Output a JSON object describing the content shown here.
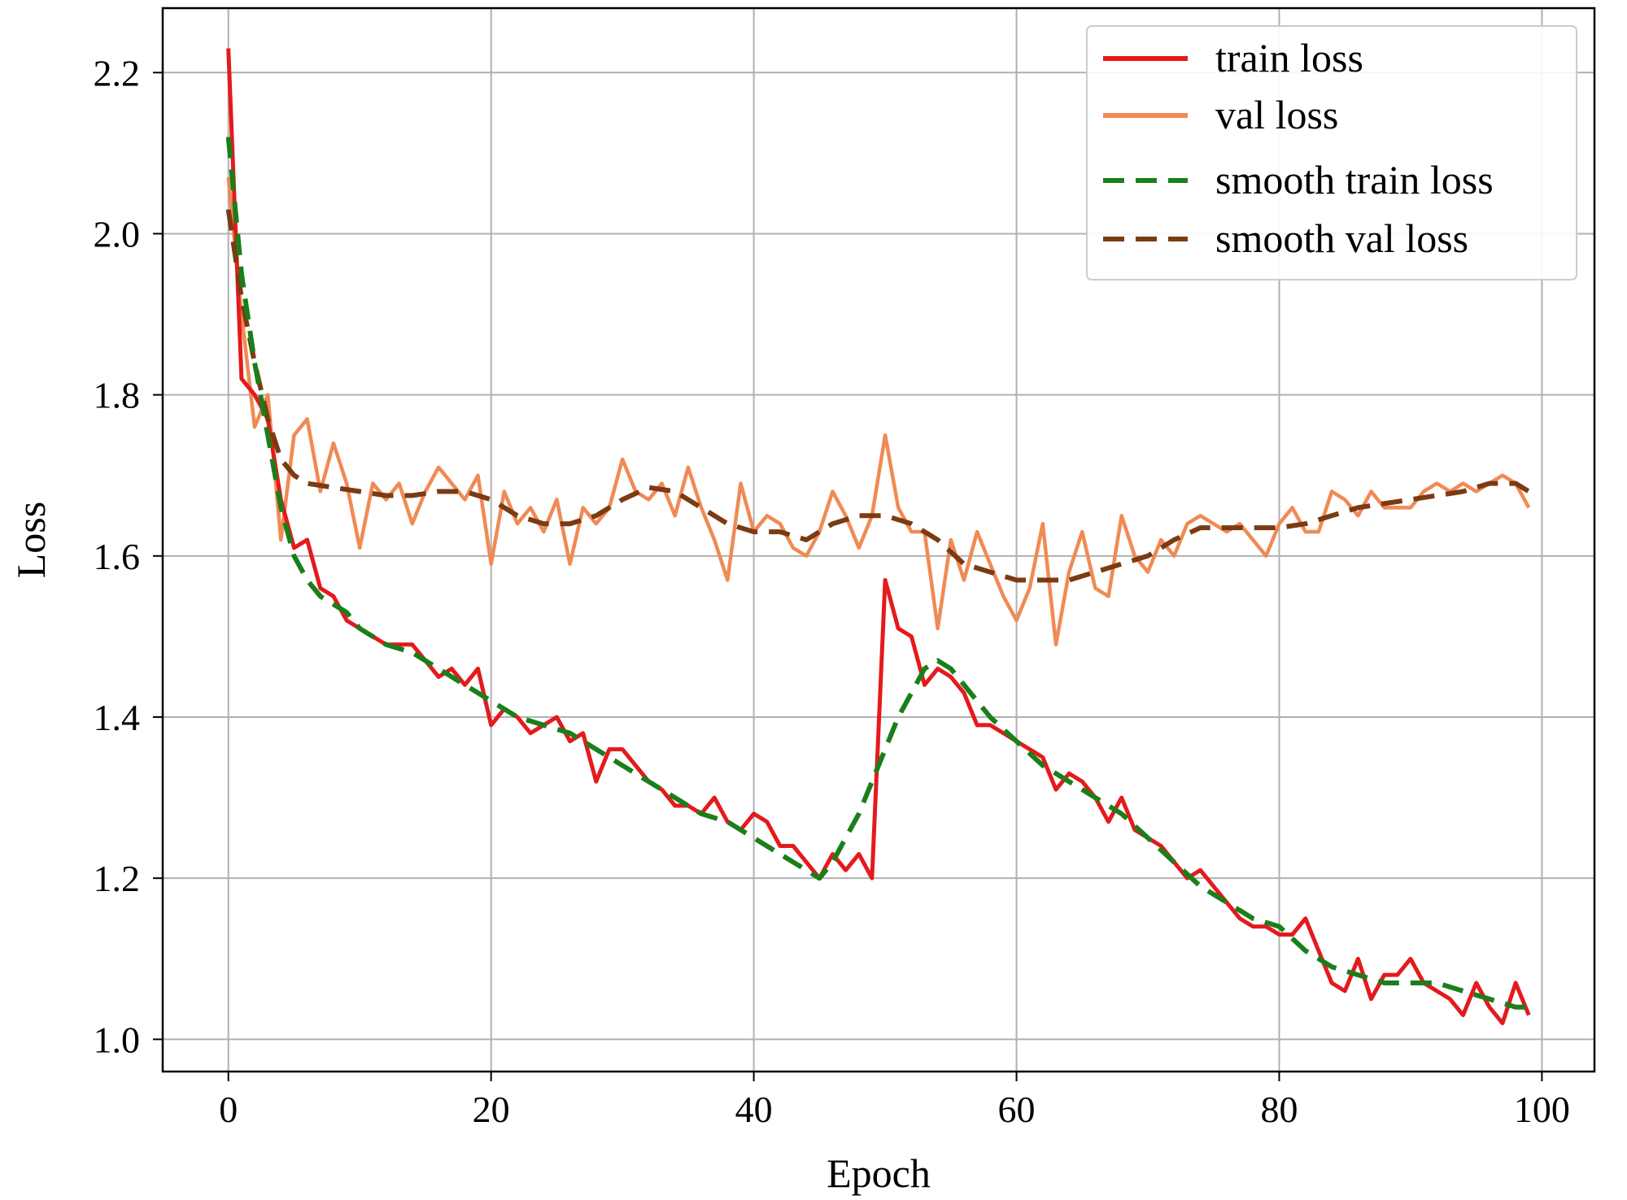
{
  "chart_data": {
    "type": "line",
    "title": "",
    "xlabel": "Epoch",
    "ylabel": "Loss",
    "xlim": [
      -5,
      104
    ],
    "ylim": [
      0.96,
      2.28
    ],
    "xticks": [
      0,
      20,
      40,
      60,
      80,
      100
    ],
    "xtick_labels": [
      "0",
      "20",
      "40",
      "60",
      "80",
      "100"
    ],
    "yticks": [
      1.0,
      1.2,
      1.4,
      1.6,
      1.8,
      2.0,
      2.2
    ],
    "ytick_labels": [
      "1.0",
      "1.2",
      "1.4",
      "1.6",
      "1.8",
      "2.0",
      "2.2"
    ],
    "grid": true,
    "legend_position": "top-right",
    "series": [
      {
        "name": "train loss",
        "color": "#e41a1c",
        "style": "solid",
        "x": [
          0,
          1,
          2,
          3,
          4,
          5,
          6,
          7,
          8,
          9,
          10,
          11,
          12,
          13,
          14,
          15,
          16,
          17,
          18,
          19,
          20,
          21,
          22,
          23,
          24,
          25,
          26,
          27,
          28,
          29,
          30,
          31,
          32,
          33,
          34,
          35,
          36,
          37,
          38,
          39,
          40,
          41,
          42,
          43,
          44,
          45,
          46,
          47,
          48,
          49,
          50,
          51,
          52,
          53,
          54,
          55,
          56,
          57,
          58,
          59,
          60,
          61,
          62,
          63,
          64,
          65,
          66,
          67,
          68,
          69,
          70,
          71,
          72,
          73,
          74,
          75,
          76,
          77,
          78,
          79,
          80,
          81,
          82,
          83,
          84,
          85,
          86,
          87,
          88,
          89,
          90,
          91,
          92,
          93,
          94,
          95,
          96,
          97,
          98,
          99
        ],
        "values": [
          2.23,
          1.82,
          1.8,
          1.77,
          1.67,
          1.61,
          1.62,
          1.56,
          1.55,
          1.52,
          1.51,
          1.5,
          1.49,
          1.49,
          1.49,
          1.47,
          1.45,
          1.46,
          1.44,
          1.46,
          1.39,
          1.41,
          1.4,
          1.38,
          1.39,
          1.4,
          1.37,
          1.38,
          1.32,
          1.36,
          1.36,
          1.34,
          1.32,
          1.31,
          1.29,
          1.29,
          1.28,
          1.3,
          1.27,
          1.26,
          1.28,
          1.27,
          1.24,
          1.24,
          1.22,
          1.2,
          1.23,
          1.21,
          1.23,
          1.2,
          1.57,
          1.51,
          1.5,
          1.44,
          1.46,
          1.45,
          1.43,
          1.39,
          1.39,
          1.38,
          1.37,
          1.36,
          1.35,
          1.31,
          1.33,
          1.32,
          1.3,
          1.27,
          1.3,
          1.26,
          1.25,
          1.24,
          1.22,
          1.2,
          1.21,
          1.19,
          1.17,
          1.15,
          1.14,
          1.14,
          1.13,
          1.13,
          1.15,
          1.11,
          1.07,
          1.06,
          1.1,
          1.05,
          1.08,
          1.08,
          1.1,
          1.07,
          1.06,
          1.05,
          1.03,
          1.07,
          1.04,
          1.02,
          1.07,
          1.03
        ]
      },
      {
        "name": "val loss",
        "color": "#f08a55",
        "style": "solid",
        "x": [
          0,
          1,
          2,
          3,
          4,
          5,
          6,
          7,
          8,
          9,
          10,
          11,
          12,
          13,
          14,
          15,
          16,
          17,
          18,
          19,
          20,
          21,
          22,
          23,
          24,
          25,
          26,
          27,
          28,
          29,
          30,
          31,
          32,
          33,
          34,
          35,
          36,
          37,
          38,
          39,
          40,
          41,
          42,
          43,
          44,
          45,
          46,
          47,
          48,
          49,
          50,
          51,
          52,
          53,
          54,
          55,
          56,
          57,
          58,
          59,
          60,
          61,
          62,
          63,
          64,
          65,
          66,
          67,
          68,
          69,
          70,
          71,
          72,
          73,
          74,
          75,
          76,
          77,
          78,
          79,
          80,
          81,
          82,
          83,
          84,
          85,
          86,
          87,
          88,
          89,
          90,
          91,
          92,
          93,
          94,
          95,
          96,
          97,
          98,
          99
        ],
        "values": [
          2.07,
          1.9,
          1.76,
          1.8,
          1.62,
          1.75,
          1.77,
          1.68,
          1.74,
          1.69,
          1.61,
          1.69,
          1.67,
          1.69,
          1.64,
          1.68,
          1.71,
          1.69,
          1.67,
          1.7,
          1.59,
          1.68,
          1.64,
          1.66,
          1.63,
          1.67,
          1.59,
          1.66,
          1.64,
          1.66,
          1.72,
          1.68,
          1.67,
          1.69,
          1.65,
          1.71,
          1.66,
          1.62,
          1.57,
          1.69,
          1.63,
          1.65,
          1.64,
          1.61,
          1.6,
          1.63,
          1.68,
          1.65,
          1.61,
          1.65,
          1.75,
          1.66,
          1.63,
          1.63,
          1.51,
          1.62,
          1.57,
          1.63,
          1.59,
          1.55,
          1.52,
          1.56,
          1.64,
          1.49,
          1.58,
          1.63,
          1.56,
          1.55,
          1.65,
          1.6,
          1.58,
          1.62,
          1.6,
          1.64,
          1.65,
          1.64,
          1.63,
          1.64,
          1.62,
          1.6,
          1.64,
          1.66,
          1.63,
          1.63,
          1.68,
          1.67,
          1.65,
          1.68,
          1.66,
          1.66,
          1.66,
          1.68,
          1.69,
          1.68,
          1.69,
          1.68,
          1.69,
          1.7,
          1.69,
          1.66
        ]
      },
      {
        "name": "smooth train loss",
        "color": "#1a7f1a",
        "style": "dashed",
        "x": [
          0,
          1,
          2,
          3,
          4,
          5,
          6,
          7,
          8,
          9,
          10,
          12,
          14,
          16,
          18,
          20,
          22,
          24,
          26,
          28,
          30,
          32,
          34,
          36,
          38,
          40,
          42,
          44,
          45,
          46,
          47,
          48,
          49,
          50,
          51,
          52,
          53,
          54,
          55,
          56,
          57,
          58,
          60,
          62,
          64,
          66,
          68,
          70,
          72,
          74,
          76,
          78,
          80,
          82,
          84,
          86,
          88,
          90,
          92,
          94,
          96,
          98,
          99
        ],
        "values": [
          2.12,
          1.95,
          1.84,
          1.75,
          1.66,
          1.6,
          1.57,
          1.55,
          1.54,
          1.53,
          1.51,
          1.49,
          1.48,
          1.46,
          1.44,
          1.42,
          1.4,
          1.39,
          1.38,
          1.36,
          1.34,
          1.32,
          1.3,
          1.28,
          1.27,
          1.25,
          1.23,
          1.21,
          1.2,
          1.22,
          1.25,
          1.28,
          1.32,
          1.36,
          1.4,
          1.43,
          1.46,
          1.47,
          1.46,
          1.44,
          1.42,
          1.4,
          1.37,
          1.34,
          1.32,
          1.3,
          1.28,
          1.25,
          1.22,
          1.19,
          1.17,
          1.15,
          1.14,
          1.11,
          1.09,
          1.08,
          1.07,
          1.07,
          1.07,
          1.06,
          1.05,
          1.04,
          1.04
        ]
      },
      {
        "name": "smooth val loss",
        "color": "#7b3b12",
        "style": "dashed",
        "x": [
          0,
          1,
          2,
          3,
          4,
          5,
          6,
          8,
          10,
          12,
          14,
          16,
          18,
          20,
          22,
          24,
          26,
          28,
          30,
          32,
          34,
          36,
          38,
          40,
          42,
          44,
          46,
          48,
          50,
          52,
          54,
          56,
          58,
          60,
          62,
          64,
          66,
          68,
          70,
          72,
          74,
          76,
          78,
          80,
          82,
          84,
          86,
          88,
          90,
          92,
          94,
          96,
          98,
          99
        ],
        "values": [
          2.03,
          1.92,
          1.84,
          1.77,
          1.72,
          1.7,
          1.69,
          1.685,
          1.68,
          1.675,
          1.675,
          1.68,
          1.68,
          1.67,
          1.65,
          1.64,
          1.64,
          1.65,
          1.67,
          1.685,
          1.68,
          1.66,
          1.64,
          1.63,
          1.63,
          1.62,
          1.64,
          1.65,
          1.65,
          1.64,
          1.62,
          1.59,
          1.58,
          1.57,
          1.57,
          1.57,
          1.58,
          1.59,
          1.6,
          1.62,
          1.635,
          1.635,
          1.635,
          1.635,
          1.64,
          1.65,
          1.66,
          1.665,
          1.67,
          1.675,
          1.68,
          1.69,
          1.69,
          1.68
        ]
      }
    ]
  }
}
